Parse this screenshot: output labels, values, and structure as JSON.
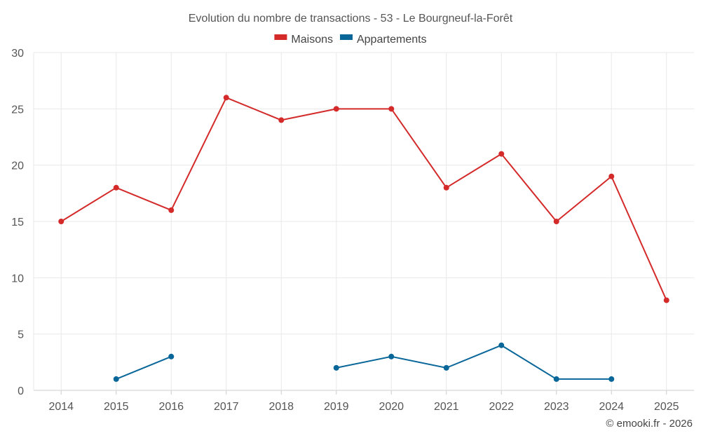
{
  "chart_data": {
    "type": "line",
    "title": "Evolution du nombre de transactions - 53 - Le Bourgneuf-la-Forêt",
    "categories": [
      "2014",
      "2015",
      "2016",
      "2017",
      "2018",
      "2019",
      "2020",
      "2021",
      "2022",
      "2023",
      "2024",
      "2025"
    ],
    "ylim": [
      0,
      30
    ],
    "yticks": [
      0,
      5,
      10,
      15,
      20,
      25,
      30
    ],
    "grid": true,
    "legend_position": "top-center",
    "series": [
      {
        "name": "Maisons",
        "color": "#d42a2a",
        "values": [
          15,
          18,
          16,
          26,
          24,
          25,
          25,
          18,
          21,
          15,
          19,
          8
        ]
      },
      {
        "name": "Appartements",
        "color": "#086699",
        "values": [
          null,
          1,
          3,
          null,
          null,
          2,
          3,
          2,
          4,
          1,
          1,
          null
        ]
      }
    ],
    "credit": "© emooki.fr - 2026"
  }
}
